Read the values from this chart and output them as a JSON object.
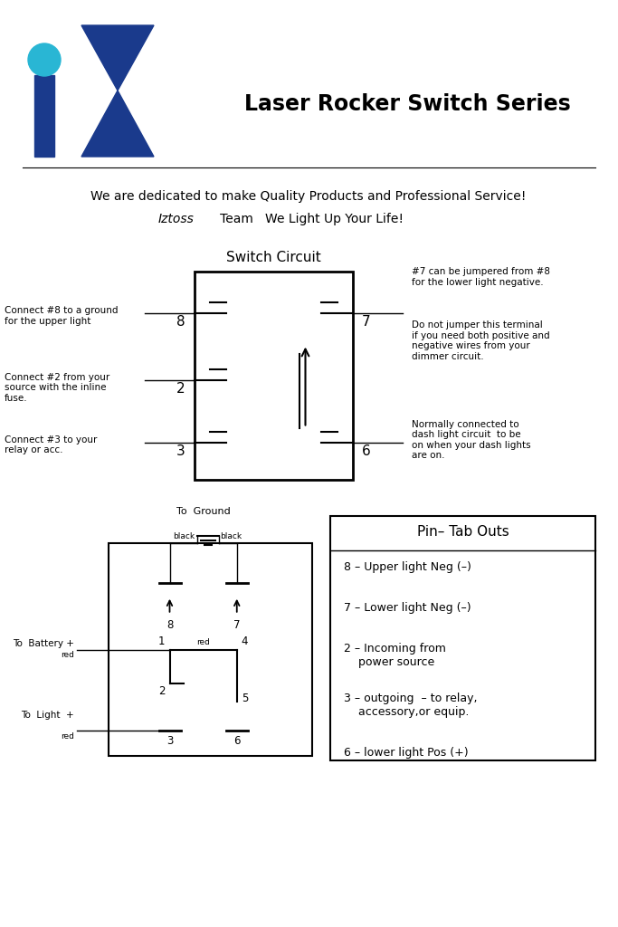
{
  "title": "Laser Rocker Switch Series",
  "tagline1": "We are dedicated to make Quality Products and Professional Service!",
  "tagline2_italic": "Iztoss",
  "tagline2_normal": "   Team   We Light Up Your Life!",
  "switch_circuit_title": "Switch Circuit",
  "pin_tab_title": "Pin– Tab Outs",
  "pin_entries": [
    "8 – Upper light Neg (–)",
    "7 – Lower light Neg (–)",
    "2 – Incoming from\n    power source",
    "3 – outgoing  – to relay,\n    accessory,or equip.",
    "6 – lower light Pos (+)"
  ],
  "bg_color": "#ffffff",
  "text_color": "#000000",
  "logo_blue": "#1a3a8c",
  "logo_cyan": "#29b6d4"
}
